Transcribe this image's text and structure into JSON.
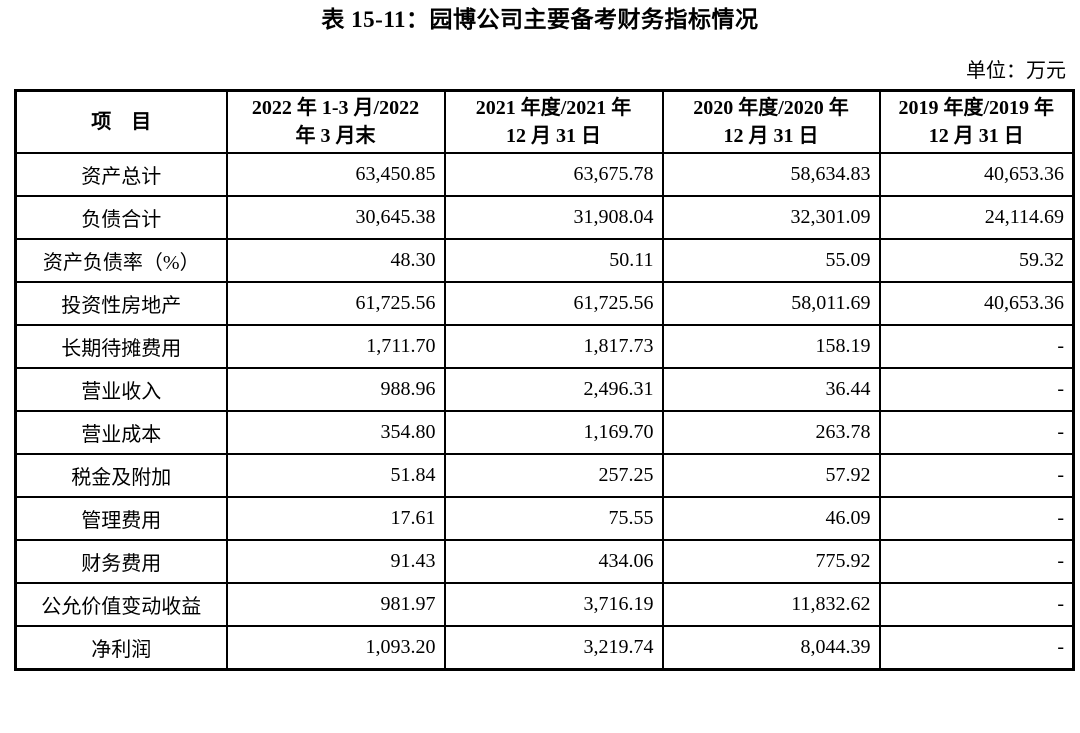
{
  "title": "表 15-11：园博公司主要备考财务指标情况",
  "unit_label": "单位：万元",
  "table": {
    "columns": [
      {
        "line1": "项　目",
        "line2": ""
      },
      {
        "line1": "2022 年 1-3 月/2022",
        "line2": "年 3 月末"
      },
      {
        "line1": "2021 年度/2021 年",
        "line2": "12 月 31 日"
      },
      {
        "line1": "2020 年度/2020 年",
        "line2": "12 月 31 日"
      },
      {
        "line1": "2019 年度/2019 年",
        "line2": "12 月 31 日"
      }
    ],
    "rows": [
      {
        "label": "资产总计",
        "values": [
          "63,450.85",
          "63,675.78",
          "58,634.83",
          "40,653.36"
        ]
      },
      {
        "label": "负债合计",
        "values": [
          "30,645.38",
          "31,908.04",
          "32,301.09",
          "24,114.69"
        ]
      },
      {
        "label": "资产负债率（%）",
        "values": [
          "48.30",
          "50.11",
          "55.09",
          "59.32"
        ]
      },
      {
        "label": "投资性房地产",
        "values": [
          "61,725.56",
          "61,725.56",
          "58,011.69",
          "40,653.36"
        ]
      },
      {
        "label": "长期待摊费用",
        "values": [
          "1,711.70",
          "1,817.73",
          "158.19",
          "-"
        ]
      },
      {
        "label": "营业收入",
        "values": [
          "988.96",
          "2,496.31",
          "36.44",
          "-"
        ]
      },
      {
        "label": "营业成本",
        "values": [
          "354.80",
          "1,169.70",
          "263.78",
          "-"
        ]
      },
      {
        "label": "税金及附加",
        "values": [
          "51.84",
          "257.25",
          "57.92",
          "-"
        ]
      },
      {
        "label": "管理费用",
        "values": [
          "17.61",
          "75.55",
          "46.09",
          "-"
        ]
      },
      {
        "label": "财务费用",
        "values": [
          "91.43",
          "434.06",
          "775.92",
          "-"
        ]
      },
      {
        "label": "公允价值变动收益",
        "values": [
          "981.97",
          "3,716.19",
          "11,832.62",
          "-"
        ]
      },
      {
        "label": "净利润",
        "values": [
          "1,093.20",
          "3,219.74",
          "8,044.39",
          "-"
        ]
      }
    ]
  }
}
